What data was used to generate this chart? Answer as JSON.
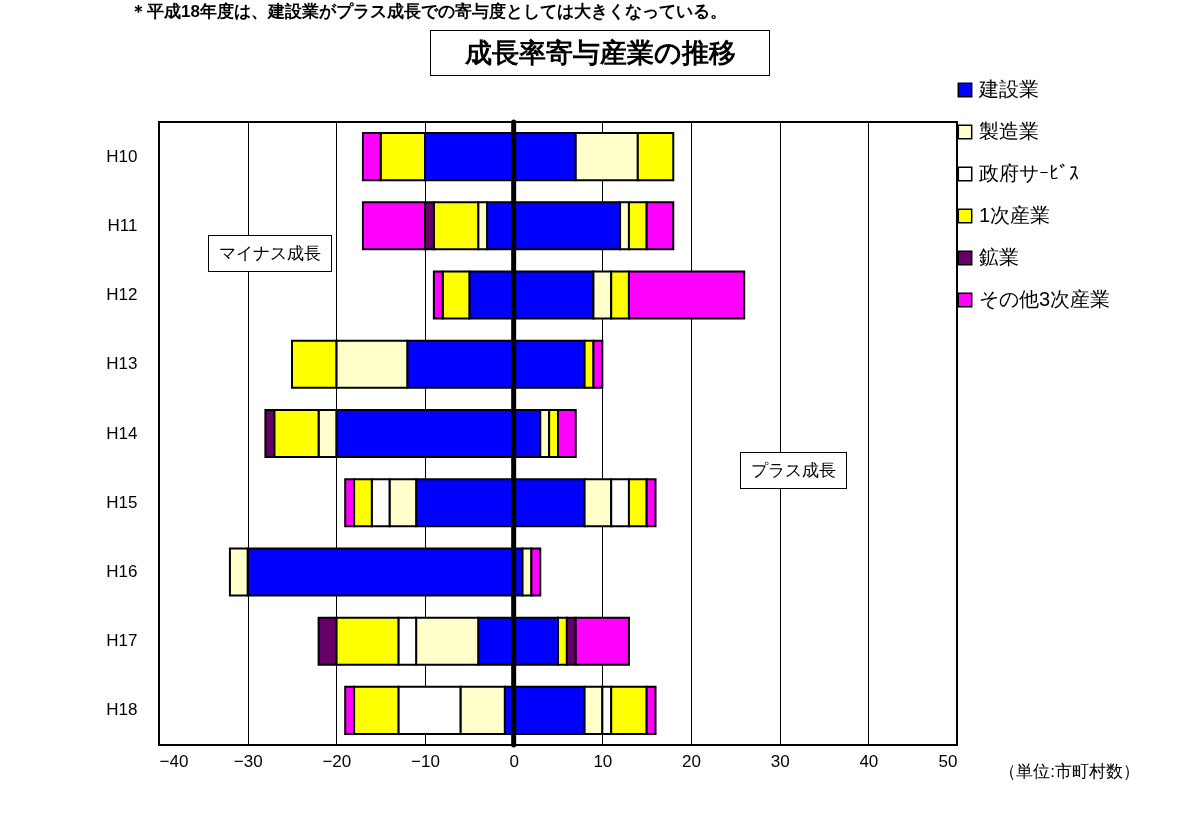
{
  "chart_data": {
    "type": "bar",
    "orientation": "horizontal",
    "stacked": true,
    "title": "成長率寄与産業の推移",
    "xlabel": "（単位:市町村数）",
    "annotations": [
      "＊平成18年度は、建設業がプラス成長での寄与度としては大きくなっている。",
      "マイナス成長",
      "プラス成長"
    ],
    "categories": [
      "H10",
      "H11",
      "H12",
      "H13",
      "H14",
      "H15",
      "H16",
      "H17",
      "H18"
    ],
    "series": [
      {
        "name": "建設業",
        "color": "#0000ff",
        "values": [
          7,
          12,
          9,
          8,
          3,
          8,
          1,
          5,
          8
        ]
      },
      {
        "name": "製造業",
        "color": "#ffffcc",
        "values": [
          7,
          1,
          2,
          null,
          1,
          3,
          1,
          null,
          2
        ]
      },
      {
        "name": "政府サｰﾋﾞｽ",
        "color": "#ffffff",
        "values": [
          null,
          null,
          null,
          null,
          null,
          2,
          null,
          null,
          1
        ]
      },
      {
        "name": "1次産業",
        "color": "#ffff00",
        "values": [
          4,
          2,
          2,
          1,
          1,
          2,
          null,
          1,
          4
        ]
      },
      {
        "name": "鉱業",
        "color": "#660066",
        "values": [
          null,
          null,
          null,
          null,
          null,
          null,
          null,
          1,
          null
        ]
      },
      {
        "name": "その他3次産業",
        "color": "#ff00ff",
        "values": [
          null,
          3,
          13,
          1,
          2,
          1,
          1,
          6,
          1
        ]
      },
      {
        "color": "#0000ff",
        "values": [
          -10,
          -3,
          -5,
          -12,
          -20,
          -11,
          -30,
          -4,
          -1
        ]
      },
      {
        "color": "#ffffcc",
        "values": [
          null,
          -1,
          null,
          -8,
          -2,
          -3,
          -2,
          -7,
          -5
        ]
      },
      {
        "color": "#ffffff",
        "values": [
          null,
          null,
          null,
          null,
          null,
          -2,
          null,
          -2,
          -7
        ]
      },
      {
        "color": "#ffff00",
        "values": [
          -5,
          -5,
          -3,
          -5,
          -5,
          -2,
          null,
          -7,
          -5
        ]
      },
      {
        "color": "#660066",
        "values": [
          null,
          -1,
          null,
          null,
          -1,
          null,
          null,
          -2,
          null
        ]
      },
      {
        "color": "#ff00ff",
        "values": [
          -2,
          -7,
          -1,
          null,
          null,
          -1,
          null,
          null,
          -1
        ]
      }
    ],
    "xlim": [
      -40,
      50
    ],
    "xticks": [
      -40,
      -30,
      -20,
      -10,
      0,
      10,
      20,
      30,
      40,
      50
    ],
    "ref_lines": [
      {
        "axis": "x",
        "value": 0,
        "color": "#000000"
      }
    ],
    "grid": "x",
    "legend": "top right"
  }
}
